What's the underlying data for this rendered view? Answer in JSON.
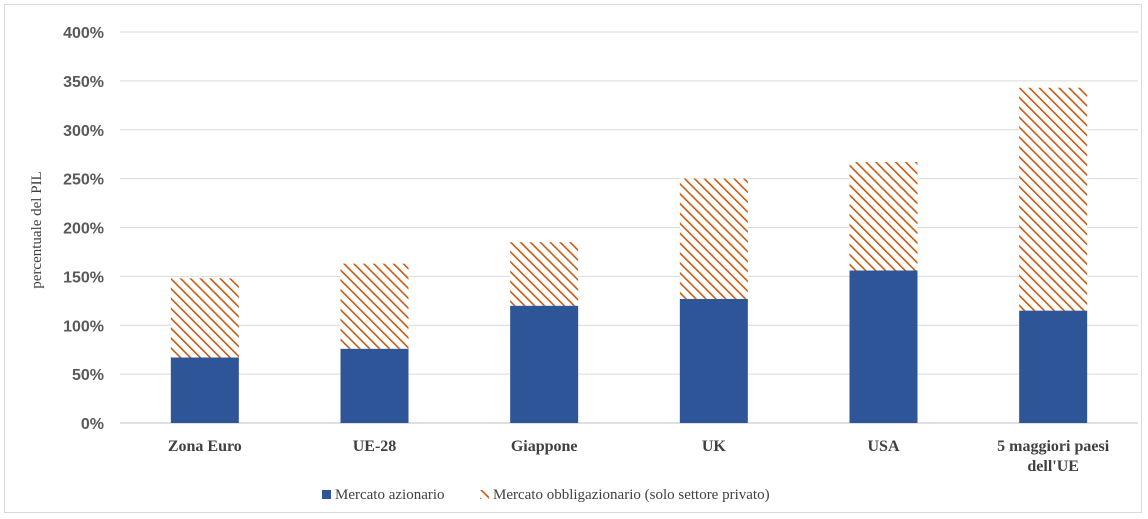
{
  "chart_data": {
    "type": "bar",
    "stacked": true,
    "title": "",
    "xlabel": "",
    "ylabel": "percentuale del PIL",
    "ylim": [
      0,
      400
    ],
    "yticks": [
      "0%",
      "50%",
      "100%",
      "150%",
      "200%",
      "250%",
      "300%",
      "350%",
      "400%"
    ],
    "grid": true,
    "legend_position": "bottom",
    "categories": [
      "Zona Euro",
      "UE-28",
      "Giappone",
      "UK",
      "USA",
      "5 maggiori paesi dell'UE"
    ],
    "category_lines": [
      [
        "Zona Euro"
      ],
      [
        "UE-28"
      ],
      [
        "Giappone"
      ],
      [
        "UK"
      ],
      [
        "USA"
      ],
      [
        "5 maggiori paesi",
        "dell'UE"
      ]
    ],
    "series": [
      {
        "name": "Mercato azionario",
        "color": "#2e5597",
        "pattern": "solid",
        "values": [
          67,
          76,
          120,
          127,
          156,
          115
        ]
      },
      {
        "name": "Mercato obbligazionario (solo settore privato)",
        "color": "#c55a11",
        "pattern": "diagonal-hatch",
        "values": [
          81,
          87,
          65,
          123,
          111,
          228
        ]
      }
    ]
  }
}
